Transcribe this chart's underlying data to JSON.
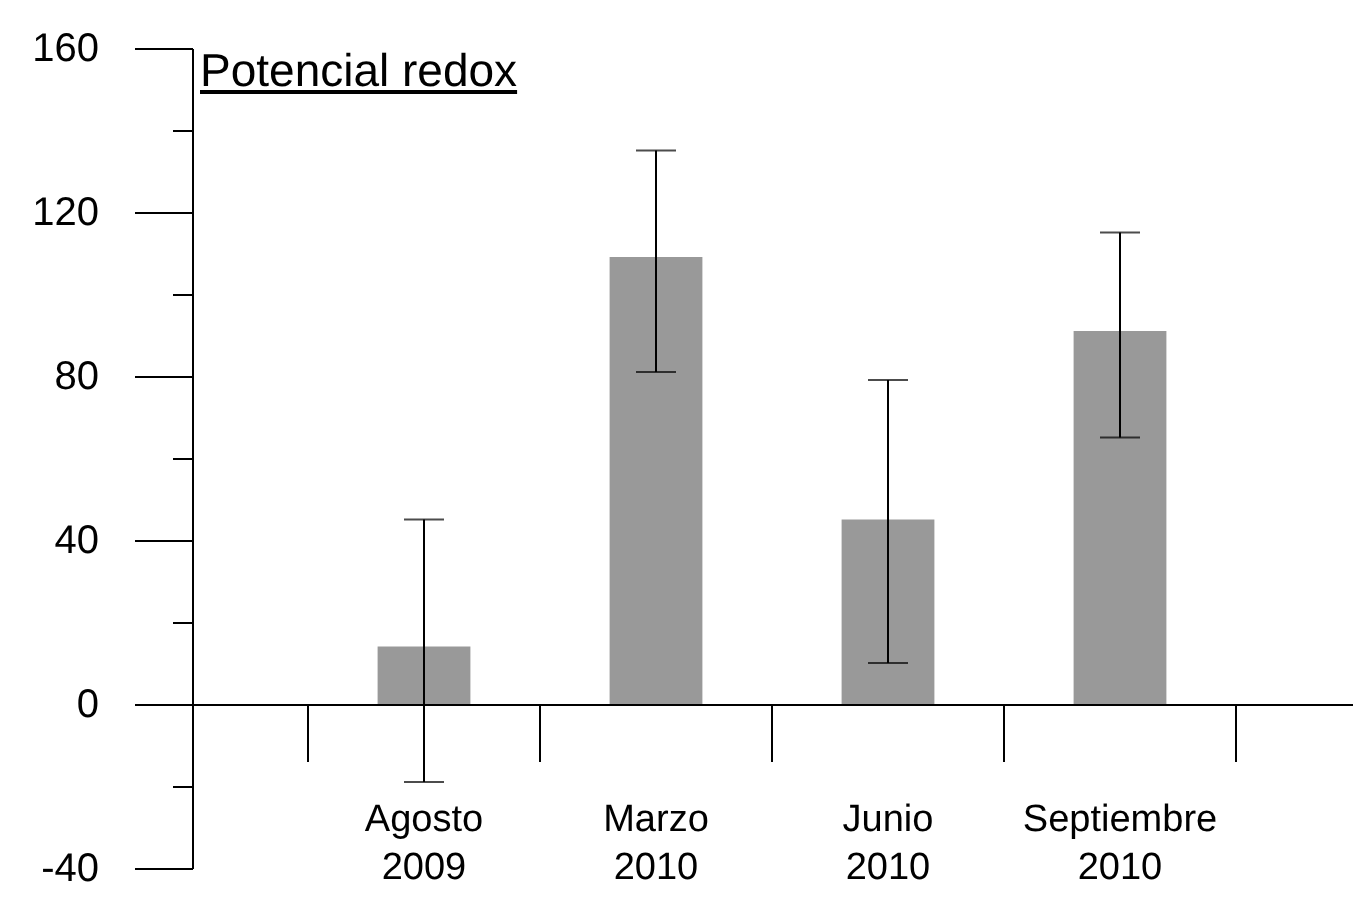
{
  "chart_data": {
    "type": "bar",
    "title": "Potencial redox",
    "categories": [
      "Agosto 2009",
      "Marzo 2010",
      "Junio 2010",
      "Septiembre 2010"
    ],
    "values": [
      14,
      109,
      45,
      91
    ],
    "errors": [
      [
        -19,
        45
      ],
      [
        81,
        135
      ],
      [
        10,
        79
      ],
      [
        65,
        115
      ]
    ],
    "color": "#999999",
    "ylim": [
      -40,
      160
    ],
    "yticks": [
      -40,
      {
        "value": -20,
        "label": null
      },
      0,
      {
        "value": 20,
        "label": null
      },
      40,
      {
        "value": 60,
        "label": null
      },
      80,
      {
        "value": 100,
        "label": null
      },
      120,
      {
        "value": 140,
        "label": null
      },
      160
    ]
  }
}
